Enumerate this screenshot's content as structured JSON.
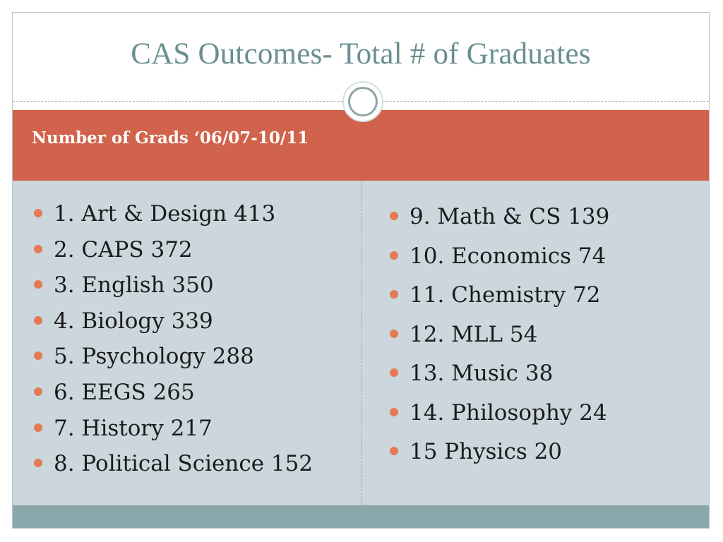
{
  "title": "CAS Outcomes- Total # of Graduates",
  "header": "Number of Grads ‘06/07-10/11",
  "colors": {
    "title": "#6b8f91",
    "header_band": "#d1624b",
    "body_background": "#cbd7dc",
    "footer_band": "#8aa8ab",
    "bullet": "#e47a54"
  },
  "left_items": [
    "1. Art & Design 413",
    "2. CAPS 372",
    "3. English 350",
    "4. Biology 339",
    "5. Psychology 288",
    "6. EEGS 265",
    "7. History 217",
    "8. Political Science 152"
  ],
  "right_items": [
    "9. Math & CS 139",
    "10. Economics 74",
    "11. Chemistry 72",
    "12. MLL 54",
    "13. Music 38",
    "14. Philosophy 24",
    "15 Physics 20"
  ]
}
